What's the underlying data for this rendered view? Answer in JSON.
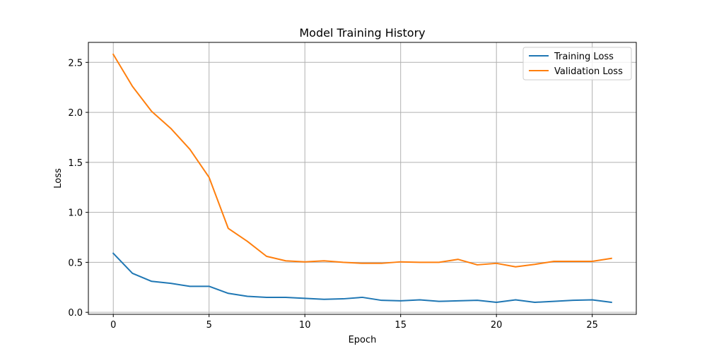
{
  "chart_data": {
    "type": "line",
    "title": "Model Training History",
    "xlabel": "Epoch",
    "ylabel": "Loss",
    "xlim": [
      -1.3,
      27.3
    ],
    "ylim": [
      -0.02,
      2.7
    ],
    "xticks": [
      0,
      5,
      10,
      15,
      20,
      25
    ],
    "yticks": [
      0.0,
      0.5,
      1.0,
      1.5,
      2.0,
      2.5
    ],
    "grid": true,
    "legend_position": "top-right",
    "x": [
      0,
      1,
      2,
      3,
      4,
      5,
      6,
      7,
      8,
      9,
      10,
      11,
      12,
      13,
      14,
      15,
      16,
      17,
      18,
      19,
      20,
      21,
      22,
      23,
      24,
      25,
      26
    ],
    "series": [
      {
        "name": "Training Loss",
        "color": "#1f77b4",
        "values": [
          0.59,
          0.39,
          0.31,
          0.29,
          0.26,
          0.26,
          0.19,
          0.16,
          0.15,
          0.15,
          0.14,
          0.13,
          0.135,
          0.15,
          0.12,
          0.115,
          0.125,
          0.11,
          0.115,
          0.12,
          0.1,
          0.125,
          0.1,
          0.11,
          0.12,
          0.125,
          0.1
        ]
      },
      {
        "name": "Validation Loss",
        "color": "#ff7f0e",
        "values": [
          2.58,
          2.26,
          2.01,
          1.84,
          1.63,
          1.35,
          0.84,
          0.71,
          0.56,
          0.515,
          0.505,
          0.515,
          0.5,
          0.49,
          0.49,
          0.505,
          0.5,
          0.5,
          0.53,
          0.475,
          0.49,
          0.455,
          0.48,
          0.51,
          0.51,
          0.51,
          0.54
        ]
      }
    ]
  }
}
